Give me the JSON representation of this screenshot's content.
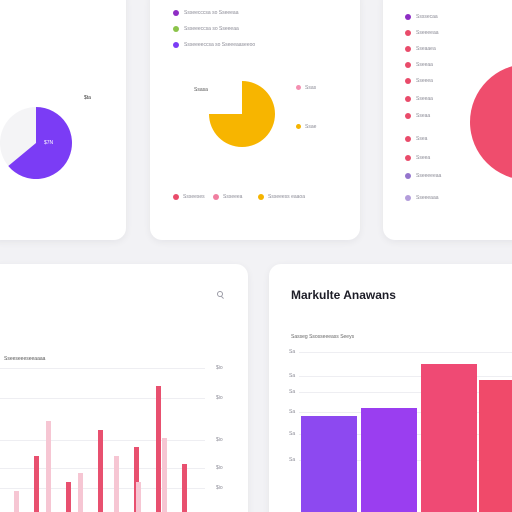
{
  "card_left_pie": {
    "legend_value": "$ta",
    "center_label": "$7N",
    "colors": {
      "slice": "#7b3cf5"
    }
  },
  "card_center_pie": {
    "top_legend": [
      {
        "label": "Ssseecccsa so Sseeeaa",
        "color": "#8e2dc4"
      },
      {
        "label": "Ssseeeccsa so Sseeeaa",
        "color": "#8bc34a"
      },
      {
        "label": "Ssseeeeccsa so Sseeeaaseeoo",
        "color": "#7b3cf5"
      }
    ],
    "pie_label_left": "Ssasa",
    "side_legend": [
      {
        "label": "Ssas",
        "color": "#f48fb1"
      },
      {
        "label": "Ssae",
        "color": "#f5b400"
      }
    ],
    "bottom_legend": [
      {
        "label": "Ssseeses",
        "color": "#e94b6a"
      },
      {
        "label": "Ssseeea",
        "color": "#f07ea0"
      },
      {
        "label": "Ssseeess eaaoa",
        "color": "#f5b400"
      }
    ],
    "chart_data": {
      "type": "pie",
      "values": [
        75,
        25
      ],
      "colors": [
        "#f7b500",
        "#ffffff"
      ]
    }
  },
  "card_right_list": {
    "items": [
      {
        "label": "Ssssecaa",
        "color": "#8e2dc4"
      },
      {
        "label": "Sseeeeaa",
        "color": "#e94b6a"
      },
      {
        "label": "Sseaaea",
        "color": "#e94b6a"
      },
      {
        "label": "Sseeaa",
        "color": "#e94b6a"
      },
      {
        "label": "Sseeea",
        "color": "#e94b6a"
      },
      {
        "label": "Sseeaa",
        "color": "#e94b6a"
      },
      {
        "label": "Sseaa",
        "color": "#e94b6a"
      },
      {
        "label": "Ssea",
        "color": "#e94b6a"
      },
      {
        "label": "Sseea",
        "color": "#e94b6a"
      },
      {
        "label": "Sseeeeeaa",
        "color": "#9575cd"
      },
      {
        "label": "Sseeeaaa",
        "color": "#b39ddb"
      }
    ],
    "colors": {
      "pie": "#ef4d6d"
    }
  },
  "card_bottom_left": {
    "subtitle": "Sseeseeeseeaaaa",
    "y_ticks": [
      "$io",
      "$io",
      "$io",
      "$io",
      "$io"
    ],
    "chart_data": {
      "type": "bar",
      "series": [
        {
          "values": [
            45,
            30,
            60,
            50,
            85,
            40
          ]
        },
        {
          "values": [
            25,
            65,
            35,
            45,
            30,
            55
          ]
        }
      ],
      "colors": [
        "#e8506f",
        "#f6c6d3"
      ],
      "ylim": [
        0,
        100
      ]
    }
  },
  "card_bottom_right": {
    "title": "Markulte Anawans",
    "subtitle": "Sasseg Ssosseeeass Seeys",
    "y_ticks": [
      "Sa",
      "Sa",
      "Sa",
      "Sa",
      "Sa",
      "Sa"
    ],
    "chart_data": {
      "type": "bar",
      "values": [
        54,
        58,
        80,
        72
      ],
      "colors": [
        "#8d49f0",
        "#9a3ef0",
        "#ef4a74",
        "#f04a6a"
      ],
      "ylim": [
        0,
        100
      ]
    }
  }
}
